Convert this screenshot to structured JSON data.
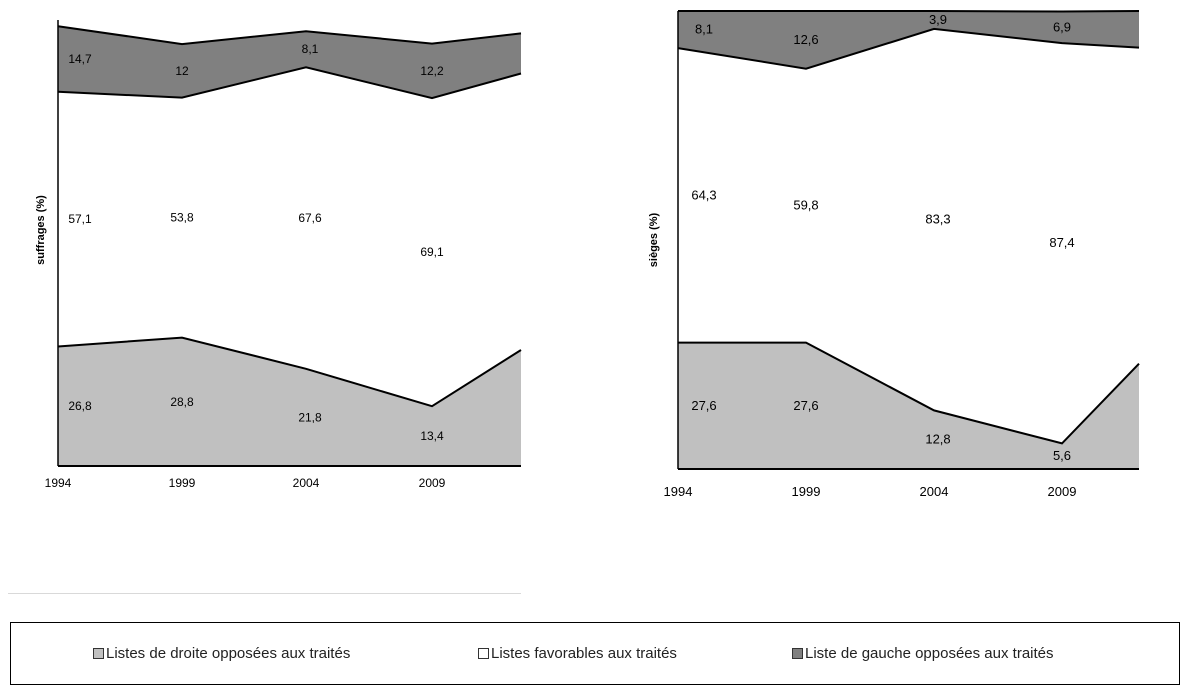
{
  "colors": {
    "droite": "#c0c0c0",
    "favorables": "#ffffff",
    "gauche": "#808080"
  },
  "chart_data": [
    {
      "type": "area",
      "stacked": true,
      "ylabel": "suffrages (%)",
      "x": [
        "1994",
        "1999",
        "2004",
        "2009",
        ""
      ],
      "ylim": [
        0,
        100
      ],
      "series": [
        {
          "name": "Listes de droite opposées aux traités",
          "values": [
            26.8,
            28.8,
            21.8,
            13.4,
            26.0
          ],
          "labels": [
            "26,8",
            "28,8",
            "21,8",
            "13,4",
            ""
          ]
        },
        {
          "name": "Listes favorables aux traités",
          "values": [
            57.1,
            53.8,
            67.6,
            69.1,
            62.0
          ],
          "labels": [
            "57,1",
            "53,8",
            "67,6",
            "69,1",
            ""
          ]
        },
        {
          "name": "Liste de gauche opposées aux traités",
          "values": [
            14.7,
            12,
            8.1,
            12.2,
            9.0
          ],
          "labels": [
            "14,7",
            "12",
            "8,1",
            "12,2",
            ""
          ]
        }
      ]
    },
    {
      "type": "area",
      "stacked": true,
      "ylabel": "sièges (%)",
      "x": [
        "1994",
        "1999",
        "2004",
        "2009",
        ""
      ],
      "ylim": [
        0,
        100
      ],
      "series": [
        {
          "name": "Listes de droite opposées aux traités",
          "values": [
            27.6,
            27.6,
            12.8,
            5.6,
            23.0
          ],
          "labels": [
            "27,6",
            "27,6",
            "12,8",
            "5,6",
            ""
          ]
        },
        {
          "name": "Listes favorables aux traités",
          "values": [
            64.3,
            59.8,
            83.3,
            87.4,
            69.0
          ],
          "labels": [
            "64,3",
            "59,8",
            "83,3",
            "87,4",
            ""
          ]
        },
        {
          "name": "Liste de gauche opposées aux traités",
          "values": [
            8.1,
            12.6,
            3.9,
            6.9,
            8.0
          ],
          "labels": [
            "8,1",
            "12,6",
            "3,9",
            "6,9",
            ""
          ]
        }
      ]
    }
  ],
  "legend": [
    {
      "label": "Listes de droite opposées aux traités",
      "color": "#c0c0c0"
    },
    {
      "label": "Listes favorables aux traités",
      "color": "#ffffff"
    },
    {
      "label": "Liste de gauche opposées aux traités",
      "color": "#808080"
    }
  ]
}
